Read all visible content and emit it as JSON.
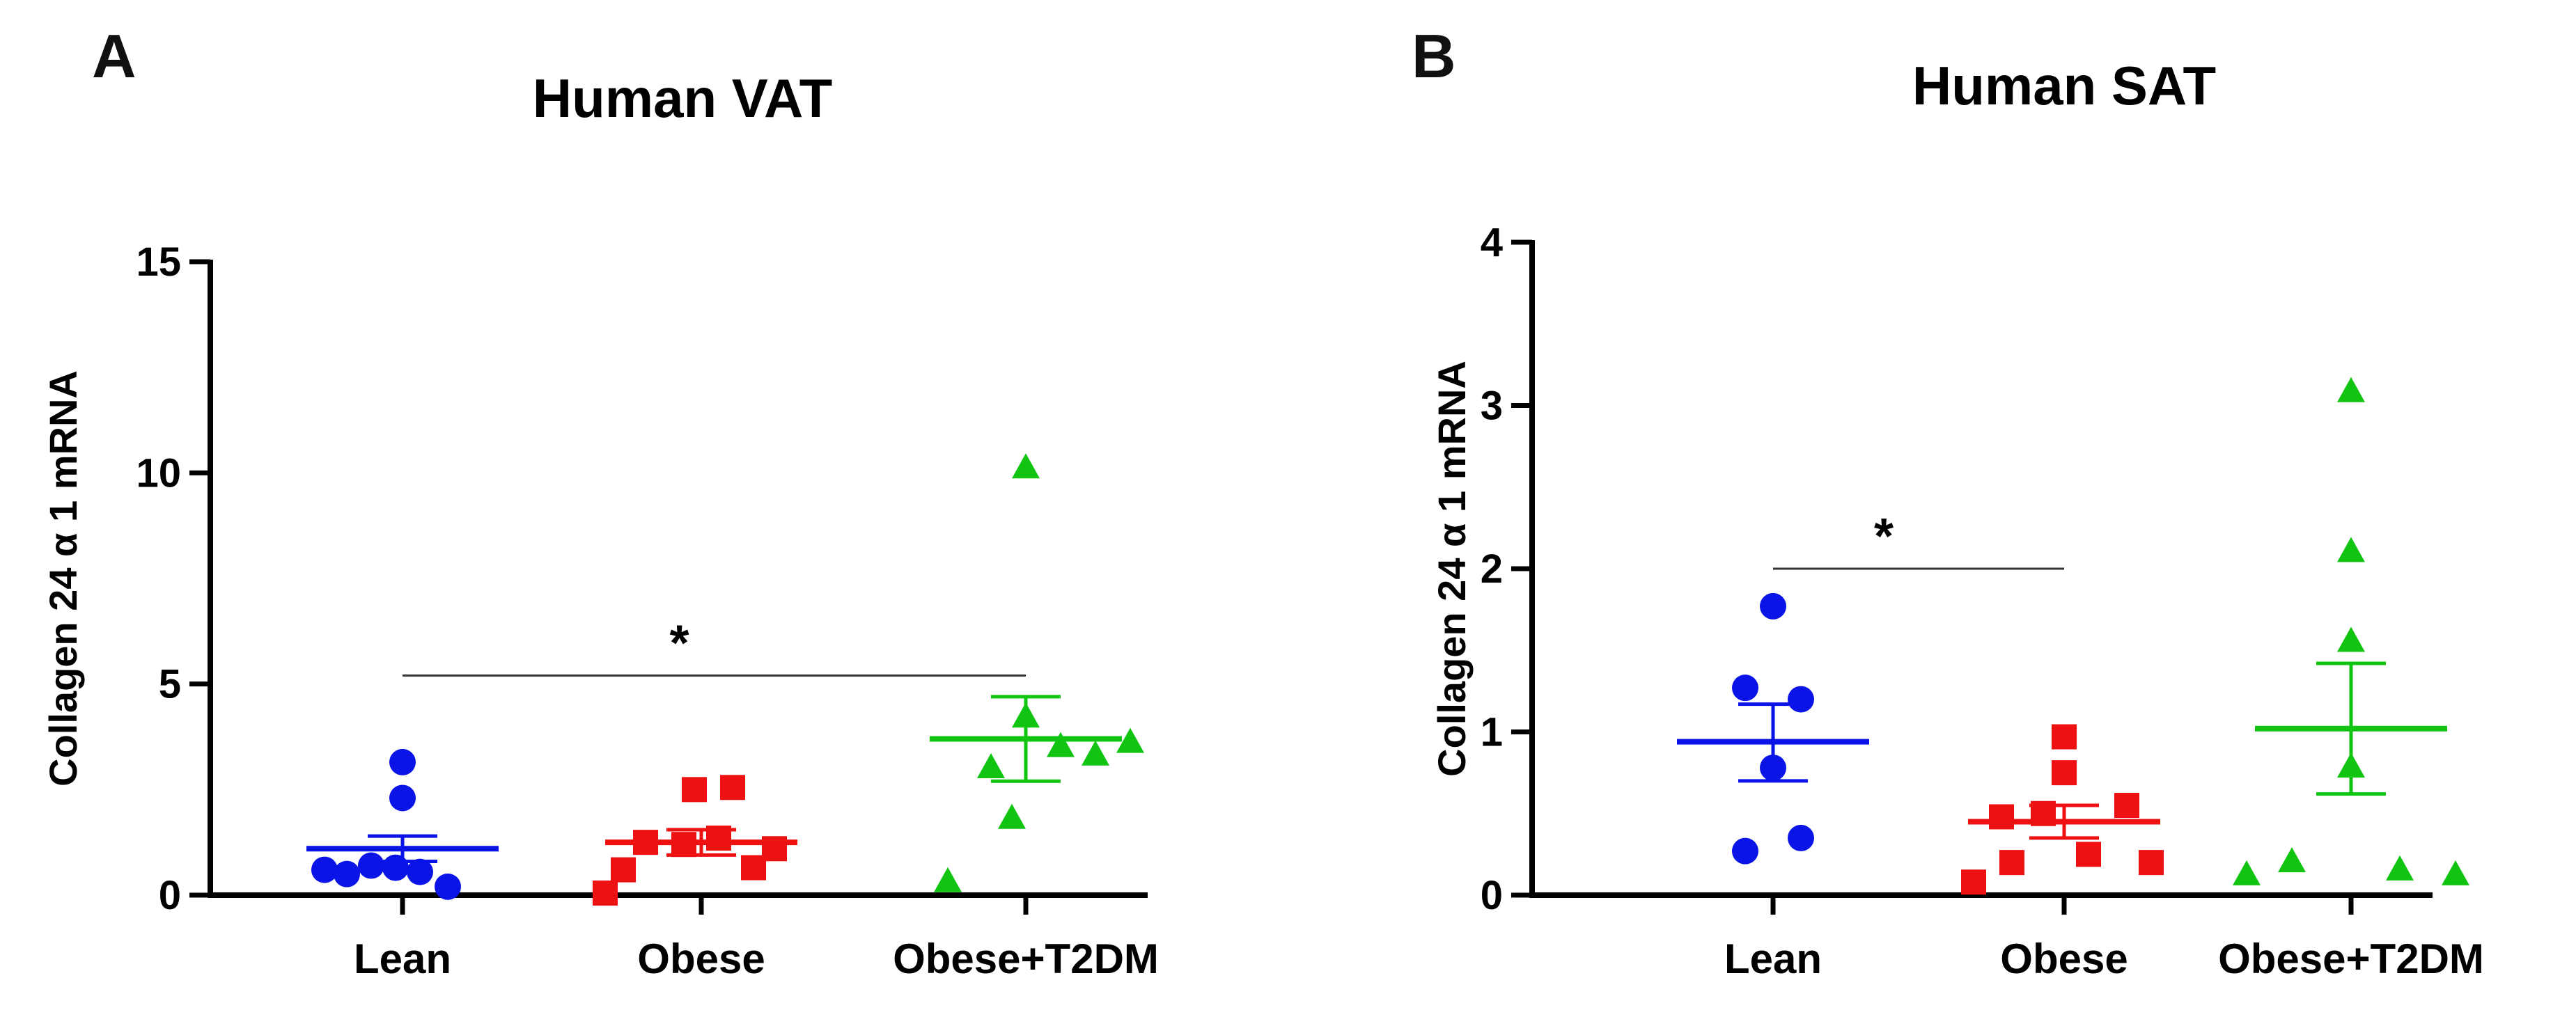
{
  "chart_data": [
    {
      "type": "scatter",
      "panel_label": "A",
      "title": "Human VAT",
      "ylabel": "Collagen 24 α 1 mRNA",
      "xlabel": "",
      "categories": [
        "Lean",
        "Obese",
        "Obese+T2DM"
      ],
      "ylim": [
        0,
        15
      ],
      "yticks": [
        "0",
        "5",
        "10",
        "15"
      ],
      "grid": false,
      "series": [
        {
          "name": "Lean",
          "color": "#0a14e6",
          "marker": "circle",
          "values": [
            0.6,
            0.5,
            0.7,
            0.65,
            0.55,
            0.2,
            2.3,
            3.15
          ],
          "mean": 1.1,
          "sem_low": 0.8,
          "sem_high": 1.4
        },
        {
          "name": "Obese",
          "color": "#ee1111",
          "marker": "square",
          "values": [
            0.05,
            0.6,
            0.65,
            1.25,
            1.2,
            1.35,
            2.5,
            2.55,
            1.1
          ],
          "mean": 1.25,
          "sem_low": 0.95,
          "sem_high": 1.55
        },
        {
          "name": "Obese+T2DM",
          "color": "#12c412",
          "marker": "triangle",
          "values": [
            0.3,
            1.8,
            3.0,
            3.5,
            3.6,
            4.2,
            10.1,
            3.3
          ],
          "mean": 3.7,
          "sem_low": 2.7,
          "sem_high": 4.7
        }
      ],
      "significance": [
        {
          "from": "Lean",
          "to": "Obese+T2DM",
          "y": 5.2,
          "label": "*"
        }
      ]
    },
    {
      "type": "scatter",
      "panel_label": "B",
      "title": "Human SAT",
      "ylabel": "Collagen 24 α 1 mRNA",
      "xlabel": "",
      "categories": [
        "Lean",
        "Obese",
        "Obese+T2DM"
      ],
      "ylim": [
        0,
        4
      ],
      "yticks": [
        "0",
        "1",
        "2",
        "3",
        "4"
      ],
      "grid": false,
      "series": [
        {
          "name": "Lean",
          "color": "#0a14e6",
          "marker": "circle",
          "values": [
            0.27,
            0.35,
            0.78,
            1.2,
            1.27,
            1.77
          ],
          "mean": 0.94,
          "sem_low": 0.7,
          "sem_high": 1.17
        },
        {
          "name": "Obese",
          "color": "#ee1111",
          "marker": "square",
          "values": [
            0.08,
            0.2,
            0.2,
            0.25,
            0.48,
            0.55,
            0.75,
            0.97,
            0.5
          ],
          "mean": 0.45,
          "sem_low": 0.35,
          "sem_high": 0.55
        },
        {
          "name": "Obese+T2DM",
          "color": "#12c412",
          "marker": "triangle",
          "values": [
            0.12,
            0.12,
            0.15,
            0.2,
            0.78,
            1.55,
            2.1,
            3.08
          ],
          "mean": 1.02,
          "sem_low": 0.62,
          "sem_high": 1.42
        }
      ],
      "significance": [
        {
          "from": "Lean",
          "to": "Obese",
          "y": 2.0,
          "label": "*"
        }
      ]
    }
  ]
}
